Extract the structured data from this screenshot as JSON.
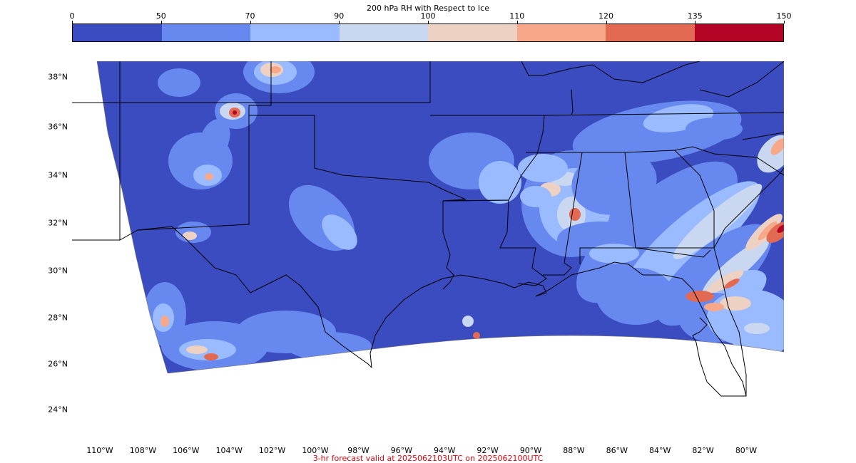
{
  "colorbar": {
    "title": "200 hPa RH with Respect to Ice",
    "ticks": [
      "0",
      "50",
      "70",
      "90",
      "100",
      "110",
      "120",
      "135",
      "150"
    ],
    "colors": [
      "#3b4cc0",
      "#6788ee",
      "#9abbff",
      "#c9d7f0",
      "#edd1c2",
      "#f7a889",
      "#e26952",
      "#b40426"
    ]
  },
  "map": {
    "lat_labels": [
      "38°N",
      "36°N",
      "34°N",
      "32°N",
      "30°N",
      "28°N",
      "26°N",
      "24°N"
    ],
    "lon_labels": [
      "110°W",
      "108°W",
      "106°W",
      "104°W",
      "102°W",
      "100°W",
      "98°W",
      "96°W",
      "94°W",
      "92°W",
      "90°W",
      "88°W",
      "86°W",
      "84°W",
      "82°W",
      "80°W"
    ],
    "colors": {
      "base": "#3b4cc0",
      "level_50": "#6788ee",
      "level_70": "#9abbff",
      "level_90": "#c9d7f0",
      "level_100": "#edd1c2",
      "level_110": "#f7a889",
      "level_120": "#e26952",
      "level_135": "#b40426",
      "boundary": "#000000"
    }
  },
  "caption": "3-hr forecast valid at 2025062103UTC on 2025062100UTC"
}
